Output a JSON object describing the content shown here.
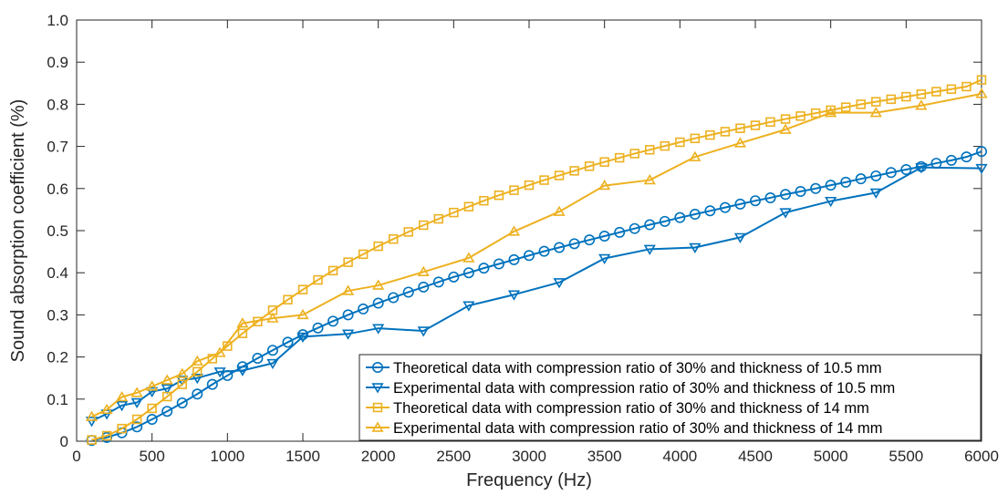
{
  "chart_data": {
    "type": "line",
    "title": "",
    "xlabel": "Frequency (Hz)",
    "ylabel": "Sound absorption coefficient (%)",
    "xlim": [
      0,
      6000
    ],
    "ylim": [
      0,
      1.0
    ],
    "xticks": [
      0,
      500,
      1000,
      1500,
      2000,
      2500,
      3000,
      3500,
      4000,
      4500,
      5000,
      5500,
      6000
    ],
    "yticks": [
      0,
      0.1,
      0.2,
      0.3,
      0.4,
      0.5,
      0.6,
      0.7,
      0.8,
      0.9,
      1.0
    ],
    "xtick_labels": [
      "0",
      "500",
      "1000",
      "1500",
      "2000",
      "2500",
      "3000",
      "3500",
      "4000",
      "4500",
      "5000",
      "5500",
      "6000"
    ],
    "ytick_labels": [
      "0",
      "0.1",
      "0.2",
      "0.3",
      "0.4",
      "0.5",
      "0.6",
      "0.7",
      "0.8",
      "0.9",
      "1.0"
    ],
    "grid": false,
    "legend_position": "bottom-right",
    "series": [
      {
        "name": "Theoretical data with compression ratio of 30% and thickness of 10.5 mm",
        "color": "#0072BD",
        "marker": "circle",
        "x": [
          100,
          200,
          300,
          400,
          500,
          600,
          700,
          800,
          900,
          1000,
          1100,
          1200,
          1300,
          1400,
          1500,
          1600,
          1700,
          1800,
          1900,
          2000,
          2100,
          2200,
          2300,
          2400,
          2500,
          2600,
          2700,
          2800,
          2900,
          3000,
          3100,
          3200,
          3300,
          3400,
          3500,
          3600,
          3700,
          3800,
          3900,
          4000,
          4100,
          4200,
          4300,
          4400,
          4500,
          4600,
          4700,
          4800,
          4900,
          5000,
          5100,
          5200,
          5300,
          5400,
          5500,
          5600,
          5700,
          5800,
          5900,
          6000
        ],
        "y": [
          0.002,
          0.009,
          0.02,
          0.034,
          0.052,
          0.071,
          0.091,
          0.112,
          0.135,
          0.156,
          0.177,
          0.197,
          0.216,
          0.235,
          0.253,
          0.269,
          0.285,
          0.3,
          0.314,
          0.328,
          0.341,
          0.354,
          0.366,
          0.378,
          0.39,
          0.4,
          0.411,
          0.421,
          0.431,
          0.441,
          0.451,
          0.46,
          0.469,
          0.478,
          0.487,
          0.496,
          0.505,
          0.514,
          0.522,
          0.531,
          0.539,
          0.547,
          0.555,
          0.563,
          0.571,
          0.578,
          0.586,
          0.593,
          0.6,
          0.608,
          0.615,
          0.623,
          0.63,
          0.638,
          0.645,
          0.652,
          0.66,
          0.667,
          0.675,
          0.688
        ]
      },
      {
        "name": "Experimental data with compression ratio of 30% and thickness of 10.5 mm",
        "color": "#0072BD",
        "marker": "triangle-down",
        "x": [
          100,
          200,
          300,
          400,
          500,
          600,
          700,
          800,
          950,
          1100,
          1300,
          1500,
          1800,
          2000,
          2300,
          2600,
          2900,
          3200,
          3500,
          3800,
          4100,
          4400,
          4700,
          5000,
          5300,
          5600,
          6000
        ],
        "y": [
          0.048,
          0.065,
          0.085,
          0.092,
          0.118,
          0.125,
          0.145,
          0.15,
          0.165,
          0.168,
          0.185,
          0.248,
          0.255,
          0.268,
          0.262,
          0.322,
          0.348,
          0.377,
          0.434,
          0.456,
          0.46,
          0.484,
          0.543,
          0.57,
          0.59,
          0.65,
          0.648
        ]
      },
      {
        "name": "Theoretical data with compression ratio of 30% and thickness of 14 mm",
        "color": "#EDB120",
        "marker": "square",
        "x": [
          100,
          200,
          300,
          400,
          500,
          600,
          700,
          800,
          900,
          1000,
          1100,
          1200,
          1300,
          1400,
          1500,
          1600,
          1700,
          1800,
          1900,
          2000,
          2100,
          2200,
          2300,
          2400,
          2500,
          2600,
          2700,
          2800,
          2900,
          3000,
          3100,
          3200,
          3300,
          3400,
          3500,
          3600,
          3700,
          3800,
          3900,
          4000,
          4100,
          4200,
          4300,
          4400,
          4500,
          4600,
          4700,
          4800,
          4900,
          5000,
          5100,
          5200,
          5300,
          5400,
          5500,
          5600,
          5700,
          5800,
          5900,
          6000
        ],
        "y": [
          0.003,
          0.013,
          0.03,
          0.052,
          0.078,
          0.106,
          0.135,
          0.165,
          0.196,
          0.226,
          0.256,
          0.284,
          0.311,
          0.336,
          0.36,
          0.383,
          0.405,
          0.425,
          0.444,
          0.463,
          0.48,
          0.497,
          0.513,
          0.528,
          0.543,
          0.557,
          0.571,
          0.584,
          0.596,
          0.608,
          0.62,
          0.631,
          0.642,
          0.653,
          0.663,
          0.673,
          0.683,
          0.692,
          0.701,
          0.71,
          0.719,
          0.727,
          0.735,
          0.743,
          0.75,
          0.758,
          0.765,
          0.772,
          0.779,
          0.786,
          0.793,
          0.8,
          0.806,
          0.812,
          0.818,
          0.824,
          0.83,
          0.836,
          0.842,
          0.858
        ]
      },
      {
        "name": "Experimental data with compression ratio of 30% and thickness of 14 mm",
        "color": "#EDB120",
        "marker": "triangle-up",
        "x": [
          100,
          200,
          300,
          400,
          500,
          600,
          700,
          800,
          950,
          1100,
          1300,
          1500,
          1800,
          2000,
          2300,
          2600,
          2900,
          3200,
          3500,
          3800,
          4100,
          4400,
          4700,
          5000,
          5300,
          5600,
          6000
        ],
        "y": [
          0.058,
          0.075,
          0.105,
          0.115,
          0.13,
          0.145,
          0.16,
          0.19,
          0.21,
          0.28,
          0.292,
          0.3,
          0.357,
          0.37,
          0.402,
          0.435,
          0.498,
          0.545,
          0.607,
          0.62,
          0.675,
          0.708,
          0.74,
          0.78,
          0.78,
          0.797,
          0.825
        ]
      }
    ]
  }
}
